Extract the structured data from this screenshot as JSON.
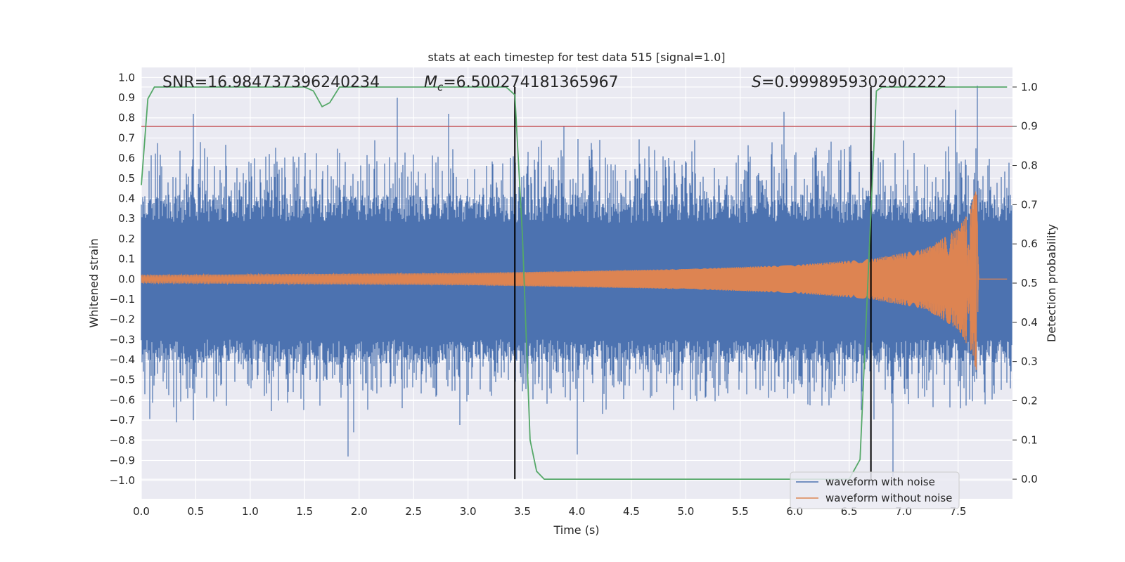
{
  "chart_data": {
    "type": "line",
    "title": "stats at each timestep for test data 515 [signal=1.0]",
    "xlabel": "Time (s)",
    "ylabel": "Whitened strain",
    "y2label": "Detection probability",
    "xlim": [
      0.0,
      8.0
    ],
    "ylim": [
      -1.09,
      1.05
    ],
    "y2lim": [
      -0.05,
      1.05
    ],
    "x_ticks": [
      "0.0",
      "0.5",
      "1.0",
      "1.5",
      "2.0",
      "2.5",
      "3.0",
      "3.5",
      "4.0",
      "4.5",
      "5.0",
      "5.5",
      "6.0",
      "6.5",
      "7.0",
      "7.5"
    ],
    "y_ticks": [
      "1.0",
      "0.9",
      "0.8",
      "0.7",
      "0.6",
      "0.5",
      "0.4",
      "0.3",
      "0.2",
      "0.1",
      "0.0",
      "−0.1",
      "−0.2",
      "−0.3",
      "−0.4",
      "−0.5",
      "−0.6",
      "−0.7",
      "−0.8",
      "−0.9",
      "−1.0"
    ],
    "y2_ticks": [
      "1.0",
      "0.9",
      "0.8",
      "0.7",
      "0.6",
      "0.5",
      "0.4",
      "0.3",
      "0.2",
      "0.1",
      "0.0"
    ],
    "grid": true,
    "legend_position": "lower-right",
    "annotations": {
      "snr": "SNR=16.984737396240234",
      "mc_symbol": "M",
      "mc_sub": "c",
      "mc_value": "=6.500274181365967",
      "s_symbol": "S",
      "s_value": "=0.9998959302902222"
    },
    "threshold": 0.9,
    "vertical_lines": [
      3.43,
      6.7
    ],
    "series": [
      {
        "name": "waveform with noise",
        "color": "#4c72b0",
        "description_of_extent": "noise band roughly ±0.4 with spikes to ±0.9",
        "peak_spikes": [
          {
            "x": 0.48,
            "y": 0.82
          },
          {
            "x": 2.35,
            "y": 0.9
          },
          {
            "x": 3.88,
            "y": 0.76
          },
          {
            "x": 5.9,
            "y": 0.83
          },
          {
            "x": 7.48,
            "y": 0.84
          },
          {
            "x": 7.68,
            "y": 0.96
          },
          {
            "x": 1.9,
            "y": -0.88
          },
          {
            "x": 4.0,
            "y": -0.87
          },
          {
            "x": 6.9,
            "y": -0.98
          }
        ]
      },
      {
        "name": "waveform without noise",
        "color": "#dd8452",
        "amplitude_envelope": [
          {
            "x": 0.0,
            "y": 0.02
          },
          {
            "x": 3.0,
            "y": 0.03
          },
          {
            "x": 5.0,
            "y": 0.05
          },
          {
            "x": 6.0,
            "y": 0.07
          },
          {
            "x": 6.7,
            "y": 0.1
          },
          {
            "x": 7.2,
            "y": 0.15
          },
          {
            "x": 7.5,
            "y": 0.25
          },
          {
            "x": 7.62,
            "y": 0.36
          },
          {
            "x": 7.67,
            "y": 0.46
          },
          {
            "x": 7.69,
            "y": 0.0
          }
        ]
      },
      {
        "name": "Detection probability",
        "color": "#55a868",
        "axis": "right",
        "points": [
          [
            0.0,
            0.75
          ],
          [
            0.06,
            0.97
          ],
          [
            0.12,
            1.0
          ],
          [
            1.5,
            1.0
          ],
          [
            1.58,
            0.99
          ],
          [
            1.66,
            0.95
          ],
          [
            1.73,
            0.96
          ],
          [
            1.82,
            1.0
          ],
          [
            3.35,
            1.0
          ],
          [
            3.43,
            0.98
          ],
          [
            3.5,
            0.62
          ],
          [
            3.57,
            0.1
          ],
          [
            3.63,
            0.02
          ],
          [
            3.7,
            0.0
          ],
          [
            6.5,
            0.0
          ],
          [
            6.6,
            0.05
          ],
          [
            6.7,
            0.68
          ],
          [
            6.75,
            0.99
          ],
          [
            6.8,
            1.0
          ],
          [
            7.95,
            1.0
          ]
        ]
      }
    ],
    "colors": {
      "background": "#eaeaf2",
      "grid": "#ffffff",
      "threshold_line": "#c44e52",
      "vline": "#000000"
    }
  }
}
